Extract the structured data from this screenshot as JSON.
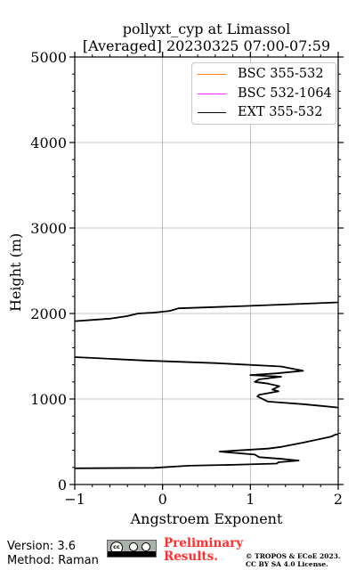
{
  "header": {
    "title_line1": "pollyxt_cyp at Limassol",
    "title_line2": "[Averaged] 20230325 07:00-07:59"
  },
  "chart_data": {
    "type": "line",
    "title": "pollyxt_cyp at Limassol",
    "subtitle": "[Averaged] 20230325 07:00-07:59",
    "xlabel": "Angstroem Exponent",
    "ylabel": "Height (m)",
    "xlim": [
      -1,
      2
    ],
    "ylim": [
      0,
      5000
    ],
    "x_ticks": [
      "−1",
      "0",
      "1",
      "2"
    ],
    "y_ticks": [
      "0",
      "1000",
      "2000",
      "3000",
      "4000",
      "5000"
    ],
    "grid": true,
    "legend_position": "top-right",
    "series": [
      {
        "name": "BSC 355-532",
        "color": "#ff7f0e",
        "points": []
      },
      {
        "name": "BSC 532-1064",
        "color": "#ff20ff",
        "points": []
      },
      {
        "name": "EXT 355-532",
        "color": "#000000",
        "segments": [
          [
            [
              -1.0,
              190
            ],
            [
              -0.1,
              195
            ],
            [
              0.3,
              220
            ],
            [
              0.8,
              230
            ],
            [
              1.3,
              245
            ],
            [
              1.32,
              260
            ],
            [
              1.55,
              280
            ],
            [
              1.35,
              300
            ],
            [
              1.1,
              320
            ],
            [
              1.05,
              350
            ],
            [
              0.7,
              380
            ],
            [
              0.65,
              385
            ],
            [
              1.2,
              420
            ],
            [
              1.35,
              440
            ],
            [
              1.6,
              490
            ],
            [
              1.92,
              560
            ],
            [
              1.96,
              580
            ],
            [
              2.0,
              590
            ]
          ],
          [
            [
              2.0,
              900
            ],
            [
              1.8,
              920
            ],
            [
              1.6,
              940
            ],
            [
              1.2,
              970
            ],
            [
              1.08,
              1030
            ],
            [
              1.1,
              1050
            ],
            [
              1.32,
              1090
            ],
            [
              1.25,
              1110
            ],
            [
              1.33,
              1150
            ],
            [
              1.2,
              1180
            ],
            [
              1.05,
              1200
            ],
            [
              1.1,
              1230
            ],
            [
              1.35,
              1260
            ],
            [
              1.0,
              1280
            ],
            [
              1.3,
              1300
            ],
            [
              1.6,
              1330
            ],
            [
              1.5,
              1350
            ],
            [
              1.35,
              1380
            ],
            [
              0.6,
              1420
            ],
            [
              -0.2,
              1450
            ],
            [
              -0.8,
              1480
            ],
            [
              -1.0,
              1490
            ]
          ],
          [
            [
              -1.0,
              1910
            ],
            [
              -0.6,
              1940
            ],
            [
              -0.4,
              1970
            ],
            [
              -0.28,
              2000
            ],
            [
              -0.1,
              2010
            ],
            [
              0.08,
              2030
            ],
            [
              0.18,
              2060
            ],
            [
              1.0,
              2090
            ],
            [
              2.0,
              2130
            ]
          ]
        ]
      }
    ]
  },
  "footer": {
    "version": "Version: 3.6",
    "method": "Method: Raman",
    "cc_text": "cc",
    "preliminary_line1": "Preliminary",
    "preliminary_line2": "Results.",
    "license_line1": "© TROPOS & ECoE 2023.",
    "license_line2": "CC BY SA 4.0 License."
  }
}
